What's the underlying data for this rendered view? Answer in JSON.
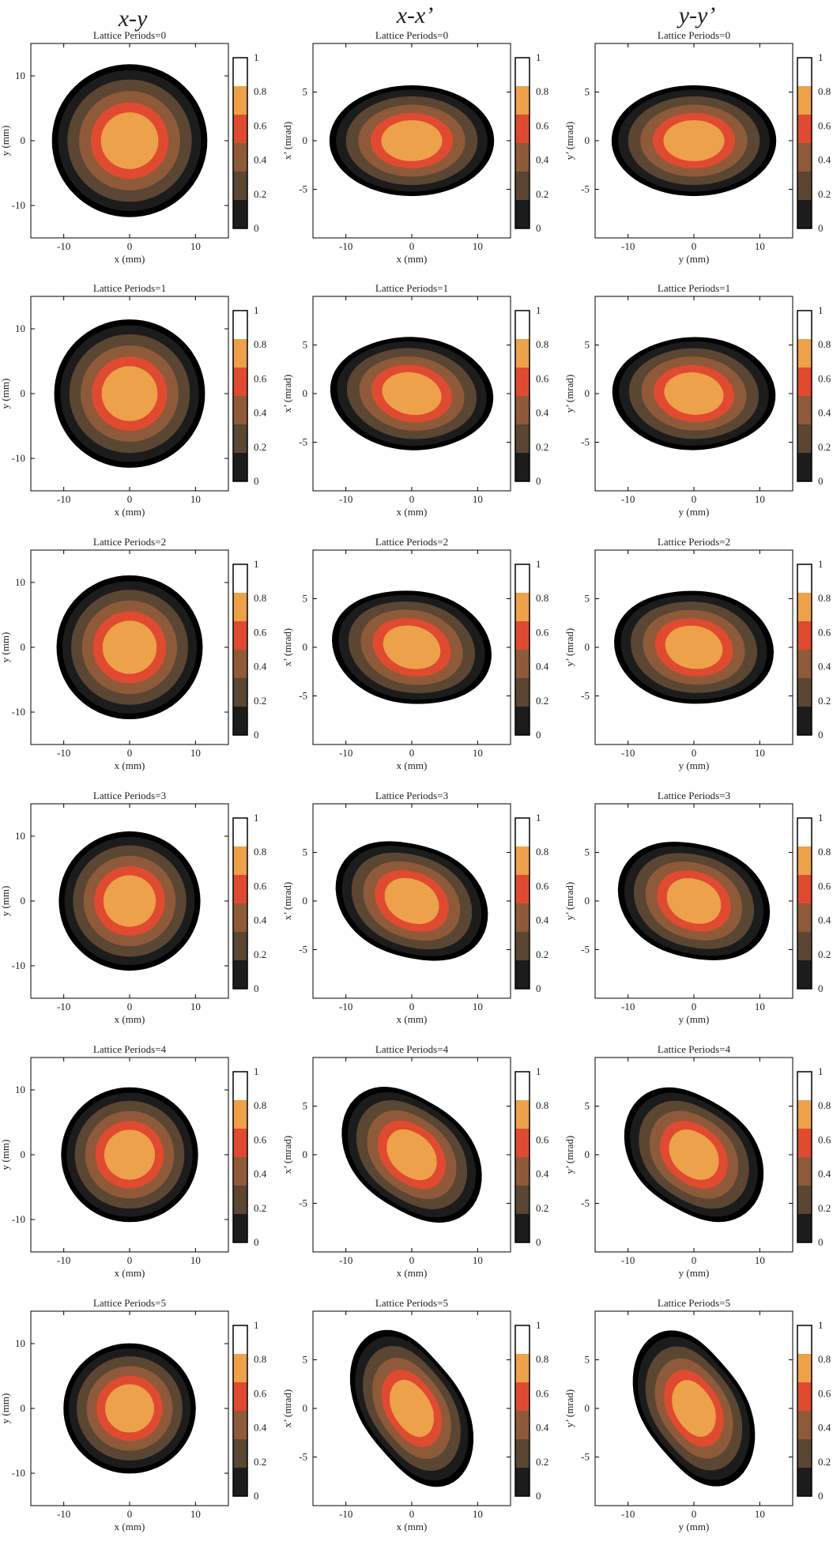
{
  "column_titles": [
    "x-y",
    "x-x’",
    "y-y’"
  ],
  "colors": {
    "black": "#000000",
    "level_0_0.2": "#1c1c1c",
    "level_0.2_0.4": "#5a4632",
    "level_0.4_0.6": "#8f5a3a",
    "level_0.6_0.8": "#e04a30",
    "level_0.8_1": "#eda14a",
    "core": "#ffffff"
  },
  "colorbar": {
    "ticks": [
      "0",
      "0.2",
      "0.4",
      "0.6",
      "0.8",
      "1"
    ],
    "colors": [
      "#1c1c1c",
      "#5a4632",
      "#8f5a3a",
      "#e04a30",
      "#eda14a",
      "#ffffff"
    ]
  },
  "chart_data": [
    {
      "type": "heatmap",
      "row": 0,
      "col": 0,
      "title": "Lattice Periods=0",
      "xlabel": "x (mm)",
      "ylabel": "y (mm)",
      "xlim": [
        -15,
        15
      ],
      "ylim": [
        -15,
        15
      ],
      "xticks": [
        "-10",
        "0",
        "10"
      ],
      "yticks": [
        "-10",
        "0",
        "10"
      ],
      "grid": false,
      "legend": "colorbar right"
    },
    {
      "type": "heatmap",
      "row": 0,
      "col": 1,
      "title": "Lattice Periods=0",
      "xlabel": "x (mm)",
      "ylabel": "x’ (mrad)",
      "xlim": [
        -15,
        15
      ],
      "ylim": [
        -10,
        10
      ],
      "xticks": [
        "-10",
        "0",
        "10"
      ],
      "yticks": [
        "-5",
        "0",
        "5"
      ],
      "grid": false,
      "legend": "colorbar right"
    },
    {
      "type": "heatmap",
      "row": 0,
      "col": 2,
      "title": "Lattice Periods=0",
      "xlabel": "y (mm)",
      "ylabel": "y’ (mrad)",
      "xlim": [
        -15,
        15
      ],
      "ylim": [
        -10,
        10
      ],
      "xticks": [
        "-10",
        "0",
        "10"
      ],
      "yticks": [
        "-5",
        "0",
        "5"
      ],
      "grid": false,
      "legend": "colorbar right"
    },
    {
      "type": "heatmap",
      "row": 1,
      "col": 0,
      "title": "Lattice Periods=1",
      "xlabel": "x (mm)",
      "ylabel": "y (mm)",
      "xlim": [
        -15,
        15
      ],
      "ylim": [
        -15,
        15
      ],
      "xticks": [
        "-10",
        "0",
        "10"
      ],
      "yticks": [
        "-10",
        "0",
        "10"
      ],
      "grid": false,
      "legend": "colorbar right"
    },
    {
      "type": "heatmap",
      "row": 1,
      "col": 1,
      "title": "Lattice Periods=1",
      "xlabel": "x (mm)",
      "ylabel": "x’ (mrad)",
      "xlim": [
        -15,
        15
      ],
      "ylim": [
        -10,
        10
      ],
      "xticks": [
        "-10",
        "0",
        "10"
      ],
      "yticks": [
        "-5",
        "0",
        "5"
      ],
      "grid": false,
      "legend": "colorbar right"
    },
    {
      "type": "heatmap",
      "row": 1,
      "col": 2,
      "title": "Lattice Periods=1",
      "xlabel": "y (mm)",
      "ylabel": "y’ (mrad)",
      "xlim": [
        -15,
        15
      ],
      "ylim": [
        -10,
        10
      ],
      "xticks": [
        "-10",
        "0",
        "10"
      ],
      "yticks": [
        "-5",
        "0",
        "5"
      ],
      "grid": false,
      "legend": "colorbar right"
    },
    {
      "type": "heatmap",
      "row": 2,
      "col": 0,
      "title": "Lattice Periods=2",
      "xlabel": "x (mm)",
      "ylabel": "y (mm)",
      "xlim": [
        -15,
        15
      ],
      "ylim": [
        -15,
        15
      ],
      "xticks": [
        "-10",
        "0",
        "10"
      ],
      "yticks": [
        "-10",
        "0",
        "10"
      ],
      "grid": false,
      "legend": "colorbar right"
    },
    {
      "type": "heatmap",
      "row": 2,
      "col": 1,
      "title": "Lattice Periods=2",
      "xlabel": "x (mm)",
      "ylabel": "x’ (mrad)",
      "xlim": [
        -15,
        15
      ],
      "ylim": [
        -10,
        10
      ],
      "xticks": [
        "-10",
        "0",
        "10"
      ],
      "yticks": [
        "-5",
        "0",
        "5"
      ],
      "grid": false,
      "legend": "colorbar right"
    },
    {
      "type": "heatmap",
      "row": 2,
      "col": 2,
      "title": "Lattice Periods=2",
      "xlabel": "y (mm)",
      "ylabel": "y’ (mrad)",
      "xlim": [
        -15,
        15
      ],
      "ylim": [
        -10,
        10
      ],
      "xticks": [
        "-10",
        "0",
        "10"
      ],
      "yticks": [
        "-5",
        "0",
        "5"
      ],
      "grid": false,
      "legend": "colorbar right"
    },
    {
      "type": "heatmap",
      "row": 3,
      "col": 0,
      "title": "Lattice Periods=3",
      "xlabel": "x (mm)",
      "ylabel": "y (mm)",
      "xlim": [
        -15,
        15
      ],
      "ylim": [
        -15,
        15
      ],
      "xticks": [
        "-10",
        "0",
        "10"
      ],
      "yticks": [
        "-10",
        "0",
        "10"
      ],
      "grid": false,
      "legend": "colorbar right"
    },
    {
      "type": "heatmap",
      "row": 3,
      "col": 1,
      "title": "Lattice Periods=3",
      "xlabel": "x (mm)",
      "ylabel": "x’ (mrad)",
      "xlim": [
        -15,
        15
      ],
      "ylim": [
        -10,
        10
      ],
      "xticks": [
        "-10",
        "0",
        "10"
      ],
      "yticks": [
        "-5",
        "0",
        "5"
      ],
      "grid": false,
      "legend": "colorbar right"
    },
    {
      "type": "heatmap",
      "row": 3,
      "col": 2,
      "title": "Lattice Periods=3",
      "xlabel": "y (mm)",
      "ylabel": "y’ (mrad)",
      "xlim": [
        -15,
        15
      ],
      "ylim": [
        -10,
        10
      ],
      "xticks": [
        "-10",
        "0",
        "10"
      ],
      "yticks": [
        "-5",
        "0",
        "5"
      ],
      "grid": false,
      "legend": "colorbar right"
    },
    {
      "type": "heatmap",
      "row": 4,
      "col": 0,
      "title": "Lattice Periods=4",
      "xlabel": "x (mm)",
      "ylabel": "y (mm)",
      "xlim": [
        -15,
        15
      ],
      "ylim": [
        -15,
        15
      ],
      "xticks": [
        "-10",
        "0",
        "10"
      ],
      "yticks": [
        "-10",
        "0",
        "10"
      ],
      "grid": false,
      "legend": "colorbar right"
    },
    {
      "type": "heatmap",
      "row": 4,
      "col": 1,
      "title": "Lattice Periods=4",
      "xlabel": "x (mm)",
      "ylabel": "x’ (mrad)",
      "xlim": [
        -15,
        15
      ],
      "ylim": [
        -10,
        10
      ],
      "xticks": [
        "-10",
        "0",
        "10"
      ],
      "yticks": [
        "-5",
        "0",
        "5"
      ],
      "grid": false,
      "legend": "colorbar right"
    },
    {
      "type": "heatmap",
      "row": 4,
      "col": 2,
      "title": "Lattice Periods=4",
      "xlabel": "y (mm)",
      "ylabel": "y’ (mrad)",
      "xlim": [
        -15,
        15
      ],
      "ylim": [
        -10,
        10
      ],
      "xticks": [
        "-10",
        "0",
        "10"
      ],
      "yticks": [
        "-5",
        "0",
        "5"
      ],
      "grid": false,
      "legend": "colorbar right"
    },
    {
      "type": "heatmap",
      "row": 5,
      "col": 0,
      "title": "Lattice Periods=5",
      "xlabel": "x (mm)",
      "ylabel": "y (mm)",
      "xlim": [
        -15,
        15
      ],
      "ylim": [
        -15,
        15
      ],
      "xticks": [
        "-10",
        "0",
        "10"
      ],
      "yticks": [
        "-10",
        "0",
        "10"
      ],
      "grid": false,
      "legend": "colorbar right"
    },
    {
      "type": "heatmap",
      "row": 5,
      "col": 1,
      "title": "Lattice Periods=5",
      "xlabel": "x (mm)",
      "ylabel": "x’ (mrad)",
      "xlim": [
        -15,
        15
      ],
      "ylim": [
        -10,
        10
      ],
      "xticks": [
        "-10",
        "0",
        "10"
      ],
      "yticks": [
        "-5",
        "0",
        "5"
      ],
      "grid": false,
      "legend": "colorbar right"
    },
    {
      "type": "heatmap",
      "row": 5,
      "col": 2,
      "title": "Lattice Periods=5",
      "xlabel": "y (mm)",
      "ylabel": "y’ (mrad)",
      "xlim": [
        -15,
        15
      ],
      "ylim": [
        -10,
        10
      ],
      "xticks": [
        "-10",
        "0",
        "10"
      ],
      "yticks": [
        "-5",
        "0",
        "5"
      ],
      "grid": false,
      "legend": "colorbar right"
    }
  ]
}
